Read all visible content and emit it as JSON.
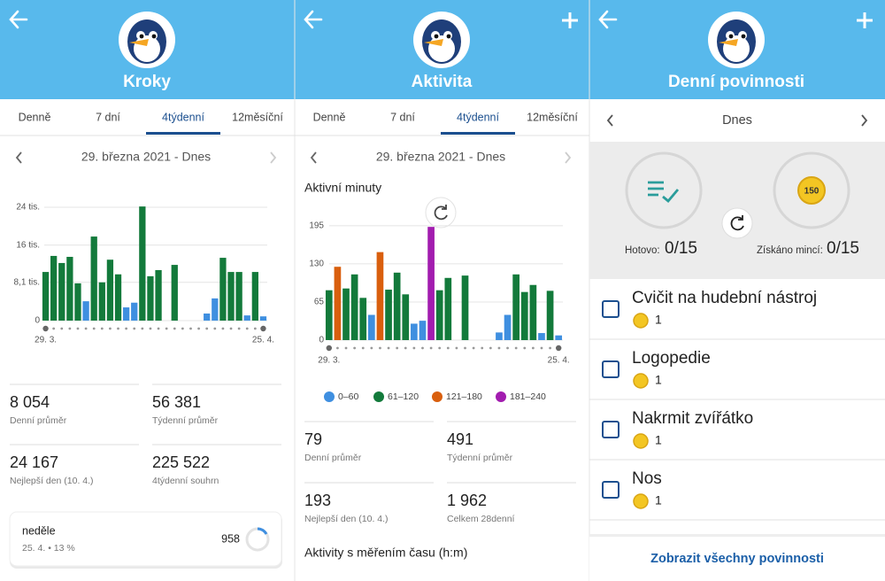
{
  "screens": [
    {
      "title": "Kroky",
      "tabs": [
        "Denně",
        "7 dní",
        "4týdenní",
        "12měsíční"
      ],
      "date_range": "29. března 2021 - Dnes",
      "stats": [
        {
          "value": "8 054",
          "label": "Denní průměr"
        },
        {
          "value": "56 381",
          "label": "Týdenní průměr"
        },
        {
          "value": "24 167",
          "label": "Nejlepší den (10. 4.)"
        },
        {
          "value": "225 522",
          "label": "4týdenní souhrn"
        }
      ],
      "day_card": {
        "day": "neděle",
        "detail": "25. 4. • 13 %",
        "value": "958"
      }
    },
    {
      "title": "Aktivita",
      "tabs": [
        "Denně",
        "7 dní",
        "4týdenní",
        "12měsíční"
      ],
      "date_range": "29. března 2021 - Dnes",
      "stats": [
        {
          "value": "79",
          "label": "Denní průměr"
        },
        {
          "value": "491",
          "label": "Týdenní průměr"
        },
        {
          "value": "193",
          "label": "Nejlepší den (10. 4.)"
        },
        {
          "value": "1 962",
          "label": "Celkem 28denní"
        }
      ],
      "section": "Aktivity s měřením času (h:m)"
    },
    {
      "title": "Denní povinnosti",
      "day": "Dnes",
      "coin_badge": "150",
      "done_label": "Hotovo:",
      "done": "0/15",
      "coins_label": "Získáno mincí:",
      "coins": "0/15",
      "tasks": [
        {
          "name": "Cvičit na hudební nástroj",
          "coins": "1"
        },
        {
          "name": "Logopedie",
          "coins": "1"
        },
        {
          "name": "Nakrmit zvířátko",
          "coins": "1"
        },
        {
          "name": "Nos",
          "coins": "1"
        }
      ],
      "button": "Zobrazit všechny povinnosti"
    }
  ],
  "chart_data": [
    {
      "type": "bar",
      "categories": [
        "29. 3.",
        null,
        null,
        null,
        null,
        null,
        null,
        null,
        null,
        null,
        null,
        null,
        null,
        null,
        null,
        null,
        null,
        null,
        null,
        null,
        null,
        null,
        null,
        null,
        null,
        null,
        null,
        "25. 4."
      ],
      "values": [
        10300,
        13700,
        12200,
        13500,
        7900,
        4100,
        17800,
        8100,
        12900,
        9800,
        2800,
        3800,
        24167,
        9400,
        10700,
        null,
        11800,
        null,
        null,
        null,
        1500,
        4700,
        13300,
        10300,
        10300,
        1100,
        10300,
        900
      ],
      "colors": [
        "#137a3b",
        "#137a3b",
        "#137a3b",
        "#137a3b",
        "#137a3b",
        "#3f8fe0",
        "#137a3b",
        "#137a3b",
        "#137a3b",
        "#137a3b",
        "#3f8fe0",
        "#3f8fe0",
        "#137a3b",
        "#137a3b",
        "#137a3b",
        "#137a3b",
        "#137a3b",
        "#137a3b",
        "#137a3b",
        "#137a3b",
        "#3f8fe0",
        "#3f8fe0",
        "#137a3b",
        "#137a3b",
        "#137a3b",
        "#3f8fe0",
        "#137a3b",
        "#3f8fe0"
      ],
      "ylim": [
        0,
        25000
      ],
      "yticks": [
        0,
        {
          "value": 8100,
          "label": "8,1 tis."
        },
        {
          "value": 16000,
          "label": "16 tis."
        },
        {
          "value": 24000,
          "label": "24 tis."
        }
      ],
      "grid": true
    },
    {
      "type": "bar",
      "title": "Aktivní minuty",
      "categories": [
        "29. 3.",
        null,
        null,
        null,
        null,
        null,
        null,
        null,
        null,
        null,
        null,
        null,
        null,
        null,
        null,
        null,
        null,
        null,
        null,
        null,
        null,
        null,
        null,
        null,
        null,
        null,
        null,
        "25. 4."
      ],
      "series": [
        {
          "name": "0–60",
          "color": "#3f8fe0",
          "values": [
            null,
            null,
            null,
            null,
            null,
            43,
            null,
            null,
            null,
            null,
            28,
            33,
            null,
            null,
            null,
            null,
            null,
            null,
            null,
            null,
            13,
            43,
            null,
            null,
            null,
            12,
            null,
            8
          ]
        },
        {
          "name": "61–120",
          "color": "#137a3b",
          "values": [
            85,
            null,
            88,
            112,
            72,
            null,
            null,
            86,
            115,
            78,
            null,
            null,
            null,
            85,
            106,
            null,
            110,
            null,
            null,
            null,
            null,
            null,
            112,
            82,
            94,
            null,
            84,
            null
          ]
        },
        {
          "name": "121–180",
          "color": "#d95f0e",
          "values": [
            null,
            125,
            null,
            null,
            null,
            null,
            150,
            null,
            null,
            null,
            null,
            null,
            null,
            null,
            null,
            null,
            null,
            null,
            null,
            null,
            null,
            null,
            null,
            null,
            null,
            null,
            null,
            null
          ]
        },
        {
          "name": "181–240",
          "color": "#a21caf",
          "values": [
            null,
            null,
            null,
            null,
            null,
            null,
            null,
            null,
            null,
            null,
            null,
            null,
            193,
            null,
            null,
            null,
            null,
            null,
            null,
            null,
            null,
            null,
            null,
            null,
            null,
            null,
            null,
            null
          ]
        }
      ],
      "ylim": [
        0,
        210
      ],
      "yticks": [
        0,
        65,
        130,
        195
      ],
      "grid": true
    }
  ]
}
